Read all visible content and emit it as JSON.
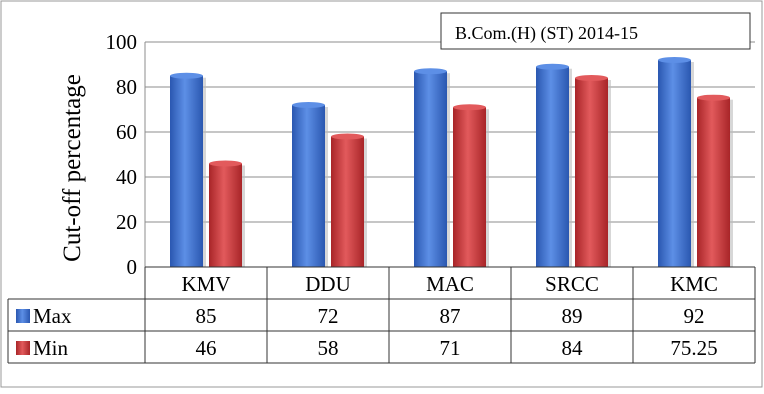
{
  "chart_data": {
    "type": "bar",
    "title": "B.Com.(H) (ST) 2014-15",
    "ylabel": "Cut-off percentage",
    "xlabel": "",
    "categories": [
      "KMV",
      "DDU",
      "MAC",
      "SRCC",
      "KMC"
    ],
    "ylim": [
      0,
      100
    ],
    "yticks": [
      "0",
      "20",
      "40",
      "60",
      "80",
      "100"
    ],
    "grid": true,
    "series": [
      {
        "name": "Max",
        "values": [
          85,
          72,
          87,
          89,
          92
        ],
        "labels": [
          "85",
          "72",
          "87",
          "89",
          "92"
        ],
        "color": "#3e6fc6"
      },
      {
        "name": "Min",
        "values": [
          46,
          58,
          71,
          84,
          75.25
        ],
        "labels": [
          "46",
          "58",
          "71",
          "84",
          "75.25"
        ],
        "color": "#c8383a"
      }
    ],
    "legend": "data-table"
  }
}
